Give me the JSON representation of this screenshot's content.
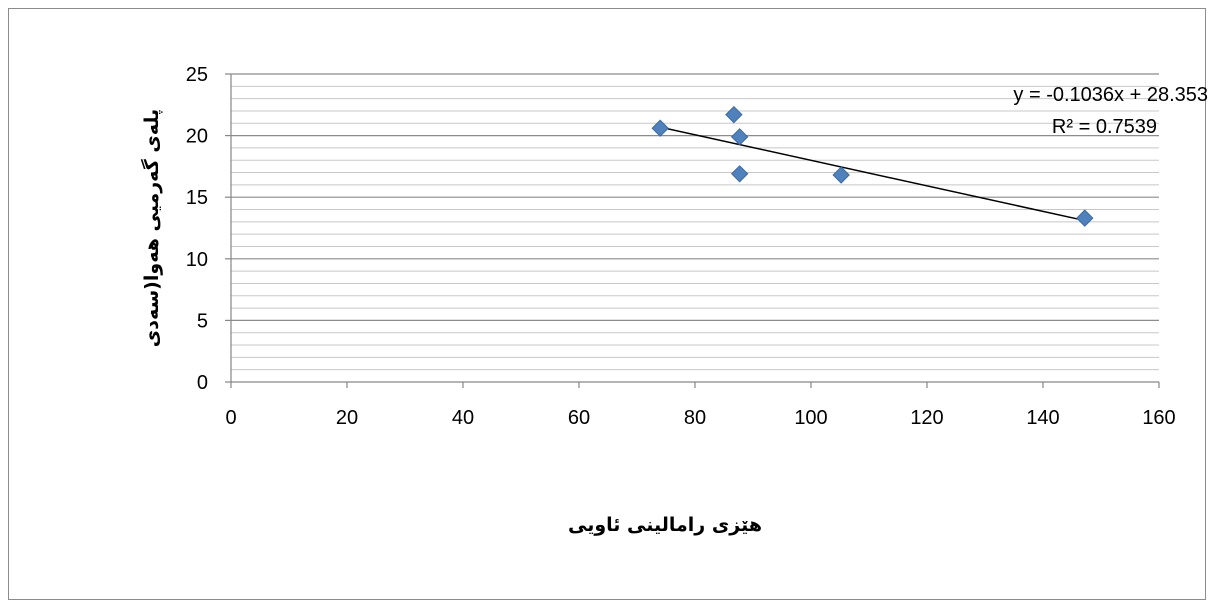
{
  "chart_data": {
    "type": "scatter",
    "title": "",
    "xlabel": "هێزی رامالینی ئاویی",
    "ylabel": "پلەی گەرمیی هەوا(سەدی",
    "xlim": [
      0,
      160
    ],
    "ylim": [
      0,
      25
    ],
    "x_ticks": [
      "0",
      "20",
      "40",
      "60",
      "80",
      "100",
      "120",
      "140",
      "160"
    ],
    "y_ticks": [
      "0",
      "5",
      "10",
      "15",
      "20",
      "25"
    ],
    "grid": true,
    "legend": "none",
    "series": [
      {
        "points": [
          {
            "x": 74,
            "y": 20.6
          },
          {
            "x": 86.7,
            "y": 21.7
          },
          {
            "x": 87.7,
            "y": 19.9
          },
          {
            "x": 87.7,
            "y": 16.9
          },
          {
            "x": 105.2,
            "y": 16.8
          },
          {
            "x": 147.2,
            "y": 13.3
          }
        ],
        "color": "#4F81BD"
      }
    ],
    "trendline": {
      "type": "linear",
      "slope": -0.1036,
      "intercept": 28.353,
      "x_range": [
        74,
        147.2
      ],
      "equation": "y = -0.1036x + 28.353",
      "r_squared": "R² = 0.7539"
    }
  }
}
